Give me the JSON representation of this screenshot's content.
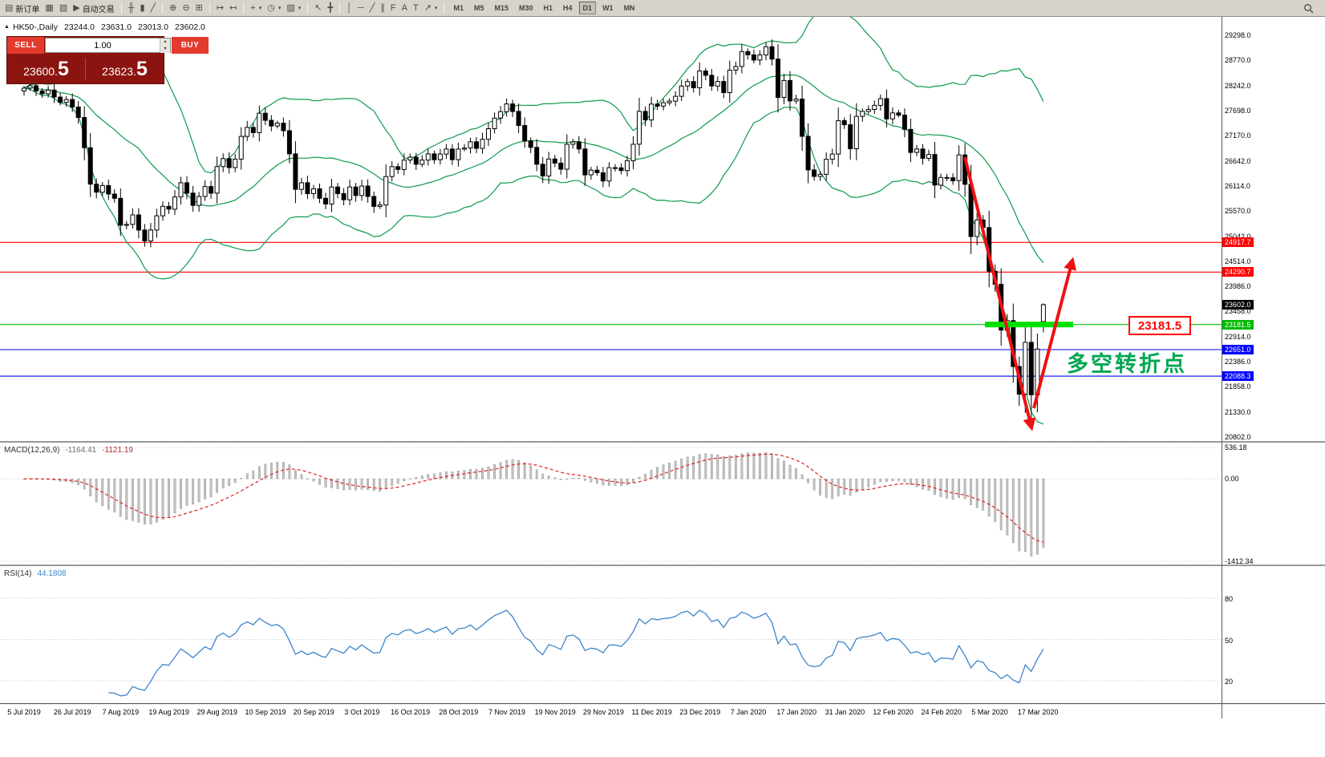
{
  "toolbar": {
    "caret_glyph": "▾",
    "groups": [
      {
        "name": "trade",
        "items": [
          {
            "name": "new-order-button",
            "glyph": "▤",
            "label": "新订单"
          },
          {
            "name": "chart-window-button",
            "glyph": "▦"
          },
          {
            "name": "profiles-button",
            "glyph": "▧"
          },
          {
            "name": "auto-trading-button",
            "glyph": "▶",
            "label": "自动交易"
          }
        ]
      },
      {
        "name": "chart-type",
        "items": [
          {
            "name": "ohlc-bars-button",
            "glyph": "╫"
          },
          {
            "name": "candlestick-button",
            "glyph": "▮"
          },
          {
            "name": "line-chart-button",
            "glyph": "╱"
          }
        ]
      },
      {
        "name": "zoom",
        "items": [
          {
            "name": "zoom-in-button",
            "glyph": "⊕"
          },
          {
            "name": "zoom-out-button",
            "glyph": "⊖"
          },
          {
            "name": "tile-windows-button",
            "glyph": "⊞"
          }
        ]
      },
      {
        "name": "scroll",
        "items": [
          {
            "name": "auto-scroll-button",
            "glyph": "↦"
          },
          {
            "name": "chart-shift-button",
            "glyph": "↤"
          }
        ]
      },
      {
        "name": "insert",
        "items": [
          {
            "name": "indicators-button",
            "glyph": "+",
            "caret": true
          },
          {
            "name": "periods-button",
            "glyph": "◷",
            "caret": true
          },
          {
            "name": "templates-button",
            "glyph": "▨",
            "caret": true
          }
        ]
      },
      {
        "name": "pointer",
        "items": [
          {
            "name": "cursor-button",
            "glyph": "↖"
          },
          {
            "name": "crosshair-button",
            "glyph": "╋"
          }
        ]
      },
      {
        "name": "draw",
        "items": [
          {
            "name": "vertical-line-button",
            "glyph": "│"
          },
          {
            "name": "horizontal-line-button",
            "glyph": "─"
          },
          {
            "name": "trendline-button",
            "glyph": "╱"
          },
          {
            "name": "channel-button",
            "glyph": "∥"
          },
          {
            "name": "fibonacci-button",
            "glyph": "F"
          },
          {
            "name": "text-button",
            "glyph": "A"
          },
          {
            "name": "label-button",
            "glyph": "T"
          },
          {
            "name": "arrows-button",
            "glyph": "↗",
            "caret": true
          }
        ]
      }
    ],
    "timeframes": [
      "M1",
      "M5",
      "M15",
      "M30",
      "H1",
      "H4",
      "D1",
      "W1",
      "MN"
    ],
    "active_timeframe": "D1"
  },
  "chart": {
    "object_marker": "▲",
    "symbol_header": "HK50-,Daily",
    "ohlc_text": {
      "open": "23244.0",
      "high": "23631.0",
      "low": "23013.0",
      "close": "23602.0"
    },
    "trade_panel": {
      "sell_label": "SELL",
      "buy_label": "BUY",
      "volume": "1.00",
      "sell_price_main": "23600.",
      "sell_price_big": "5",
      "buy_price_main": "23623.",
      "buy_price_big": "5",
      "spinner_up": "▴",
      "spinner_down": "▾"
    },
    "price_axis": {
      "min": 20802,
      "max": 29298,
      "labels": [
        "29298.0",
        "28770.0",
        "28242.0",
        "27698.0",
        "27170.0",
        "26642.0",
        "26114.0",
        "25570.0",
        "25042.0",
        "24514.0",
        "23986.0",
        "23458.0",
        "22914.0",
        "22386.0",
        "21858.0",
        "21330.0",
        "20802.0"
      ]
    },
    "levels": [
      {
        "label": "24917.7",
        "value": 24917.7,
        "color": "#ff0000"
      },
      {
        "label": "24290.7",
        "value": 24290.7,
        "color": "#ff0000"
      },
      {
        "label": "23181.5",
        "value": 23181.5,
        "color": "#00bb00"
      },
      {
        "label": "22651.0",
        "value": 22651.0,
        "color": "#0000ff"
      },
      {
        "label": "22088.3",
        "value": 22088.3,
        "color": "#0000ff"
      }
    ],
    "current_price": {
      "label": "23602.0",
      "value": 23602.0,
      "color": "#000000"
    },
    "annotations": {
      "turning_point_text": "多空转折点",
      "turning_point_color": "#00a651",
      "level_label": "23181.5",
      "level_label_color": "#ff0000",
      "arrow_color": "#ee1111",
      "highlight_color": "#00e000"
    }
  },
  "chart_data": {
    "type": "candlestick",
    "symbol": "HK50",
    "timeframe": "Daily",
    "first_open": 28120,
    "crash_low": 21100,
    "last_candle": {
      "open": 23244.0,
      "high": 23631.0,
      "low": 23013.0,
      "close": 23602.0
    },
    "bull_color": "#ffffff",
    "bear_color": "#000000",
    "bollinger": {
      "period": 20,
      "deviation": 2,
      "color": "#0b9a4a"
    },
    "closes": [
      28180,
      28230,
      28120,
      28060,
      28140,
      27990,
      27880,
      27940,
      27780,
      27560,
      26920,
      26150,
      25980,
      26120,
      25940,
      25850,
      25280,
      25300,
      25500,
      25180,
      24950,
      25180,
      25480,
      25680,
      25620,
      25880,
      26180,
      25960,
      25700,
      25890,
      26100,
      25960,
      26520,
      26690,
      26500,
      26680,
      27160,
      27350,
      27240,
      27650,
      27500,
      27380,
      27440,
      27280,
      26790,
      26040,
      26180,
      25950,
      26050,
      25850,
      25730,
      26090,
      25950,
      25820,
      26090,
      25910,
      26110,
      25890,
      25680,
      25710,
      26310,
      26520,
      26460,
      26660,
      26720,
      26570,
      26660,
      26790,
      26667,
      26786,
      26891,
      26667,
      26891,
      26913,
      27046,
      26907,
      27100,
      27323,
      27547,
      27683,
      27847,
      27688,
      27390,
      27065,
      26927,
      26571,
      26324,
      26681,
      26595,
      26466,
      26993,
      27043,
      26893,
      26346,
      26445,
      26391,
      26217,
      26498,
      26494,
      26436,
      26645,
      26994,
      27688,
      27508,
      27843,
      27800,
      27871,
      27906,
      28008,
      28225,
      28319,
      28189,
      28543,
      28452,
      28226,
      28322,
      28087,
      28561,
      28638,
      28954,
      28885,
      28774,
      28883,
      29056,
      28795,
      27985,
      28341,
      27909,
      27949,
      27161,
      26450,
      26313,
      26357,
      26676,
      26786,
      27493,
      27405,
      26898,
      27583,
      27688,
      27730,
      27816,
      27959,
      27530,
      27656,
      27609,
      27309,
      26821,
      26893,
      26697,
      26778,
      26130,
      26292,
      26285,
      26223,
      26768,
      26147,
      25041,
      25392,
      25232,
      24309,
      24033,
      23064,
      23264,
      22292,
      21709,
      22805,
      21696,
      22663,
      23602
    ]
  },
  "macd": {
    "label": "MACD(12,26,9)",
    "value_main": "-1164.41",
    "value_signal": "-1121.19",
    "axis_labels": [
      "536.18",
      "0.00",
      "-1412.34"
    ],
    "axis_values": [
      536.18,
      0,
      -1412.34
    ],
    "fast": 12,
    "slow": 26,
    "signal": 9,
    "histogram_color": "#c2c2c2",
    "signal_color": "#e02020"
  },
  "rsi": {
    "label": "RSI(14)",
    "value": "44.1808",
    "period": 14,
    "levels": [
      80,
      50,
      20
    ],
    "line_color": "#3d85cc"
  },
  "time_axis": {
    "dates": [
      "5 Jul 2019",
      "26 Jul 2019",
      "7 Aug 2019",
      "19 Aug 2019",
      "29 Aug 2019",
      "10 Sep 2019",
      "20 Sep 2019",
      "3 Oct 2019",
      "16 Oct 2019",
      "28 Oct 2019",
      "7 Nov 2019",
      "19 Nov 2019",
      "29 Nov 2019",
      "11 Dec 2019",
      "23 Dec 2019",
      "7 Jan 2020",
      "17 Jan 2020",
      "31 Jan 2020",
      "12 Feb 2020",
      "24 Feb 2020",
      "5 Mar 2020",
      "17 Mar 2020"
    ]
  }
}
